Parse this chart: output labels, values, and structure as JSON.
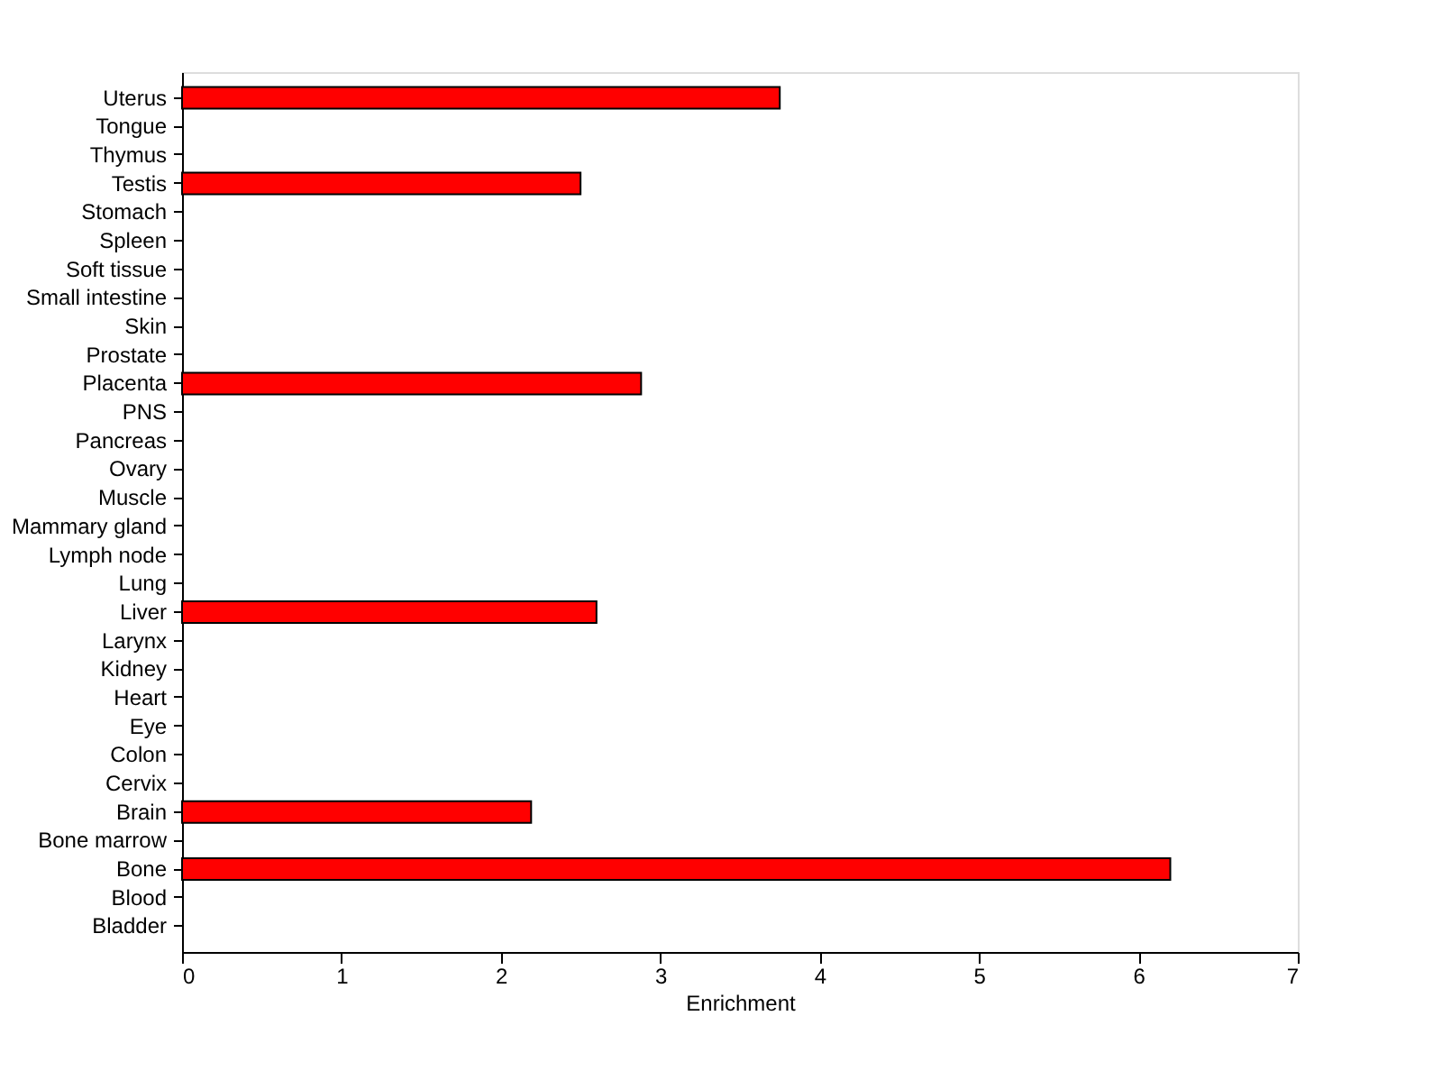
{
  "chart_data": {
    "type": "bar",
    "orientation": "horizontal",
    "xlabel": "Enrichment",
    "categories": [
      "Uterus",
      "Tongue",
      "Thymus",
      "Testis",
      "Stomach",
      "Spleen",
      "Soft tissue",
      "Small intestine",
      "Skin",
      "Prostate",
      "Placenta",
      "PNS",
      "Pancreas",
      "Ovary",
      "Muscle",
      "Mammary gland",
      "Lymph node",
      "Lung",
      "Liver",
      "Larynx",
      "Kidney",
      "Heart",
      "Eye",
      "Colon",
      "Cervix",
      "Brain",
      "Bone marrow",
      "Bone",
      "Blood",
      "Bladder"
    ],
    "values": [
      3.75,
      null,
      null,
      2.5,
      null,
      null,
      null,
      null,
      null,
      null,
      2.88,
      null,
      null,
      null,
      null,
      null,
      null,
      null,
      2.6,
      null,
      null,
      null,
      null,
      null,
      null,
      2.19,
      null,
      6.2,
      null,
      null
    ],
    "color": "#ff0000",
    "xlim": [
      0,
      7
    ],
    "xticks": [
      0,
      1,
      2,
      3,
      4,
      5,
      6,
      7
    ],
    "grid": false
  }
}
